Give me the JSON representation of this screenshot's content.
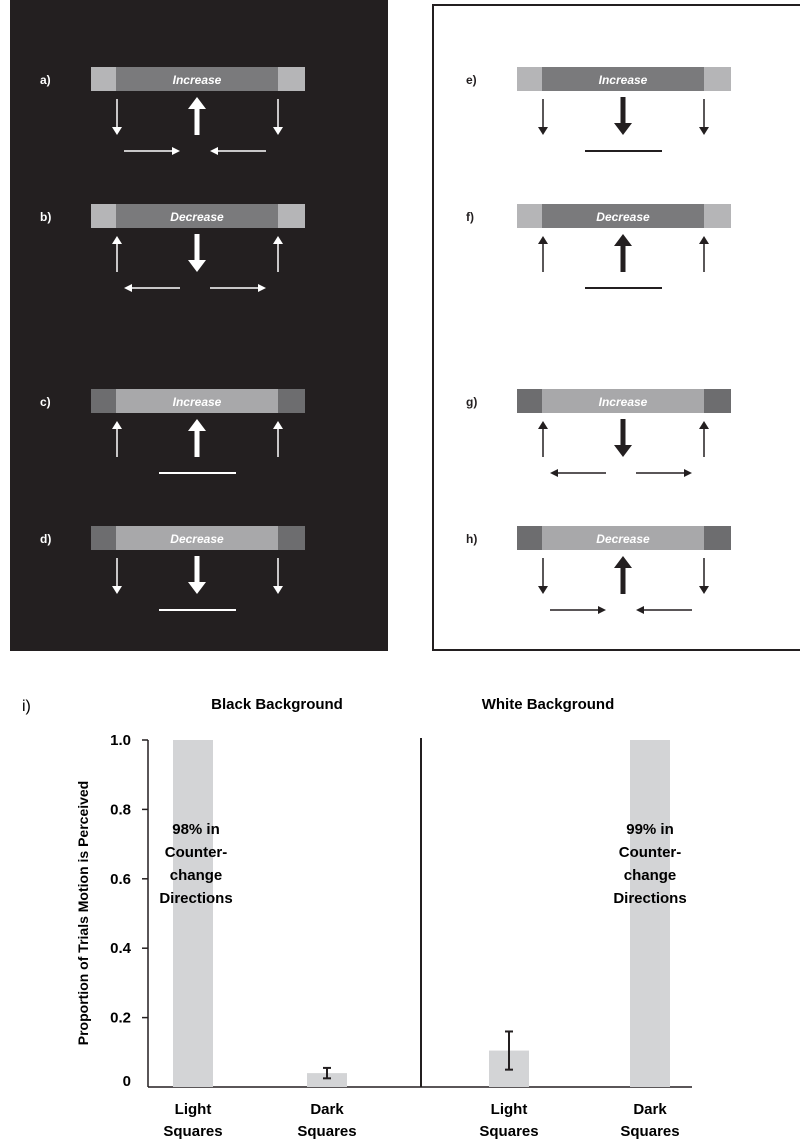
{
  "black_panel": {
    "background": "#231f20",
    "foreground": "#ffffff",
    "rows": [
      {
        "label": "a)",
        "bar_text": "Increase",
        "outer_color": "#b5b5b7",
        "inner_color": "#7a7a7c",
        "side_arrows": "down",
        "center_arrow": "up",
        "bottom": "arrows-inward"
      },
      {
        "label": "b)",
        "bar_text": "Decrease",
        "outer_color": "#b5b5b7",
        "inner_color": "#7a7a7c",
        "side_arrows": "up",
        "center_arrow": "down",
        "bottom": "arrows-outward"
      },
      {
        "label": "c)",
        "bar_text": "Increase",
        "outer_color": "#6d6d6f",
        "inner_color": "#a8a8aa",
        "side_arrows": "up",
        "center_arrow": "up",
        "bottom": "line"
      },
      {
        "label": "d)",
        "bar_text": "Decrease",
        "outer_color": "#6d6d6f",
        "inner_color": "#a8a8aa",
        "side_arrows": "down",
        "center_arrow": "down",
        "bottom": "line"
      }
    ]
  },
  "white_panel": {
    "background": "#ffffff",
    "foreground": "#231f20",
    "rows": [
      {
        "label": "e)",
        "bar_text": "Increase",
        "outer_color": "#b5b5b7",
        "inner_color": "#7a7a7c",
        "side_arrows": "down",
        "center_arrow": "down",
        "bottom": "line"
      },
      {
        "label": "f)",
        "bar_text": "Decrease",
        "outer_color": "#b5b5b7",
        "inner_color": "#7a7a7c",
        "side_arrows": "up",
        "center_arrow": "up",
        "bottom": "line"
      },
      {
        "label": "g)",
        "bar_text": "Increase",
        "outer_color": "#6d6d6f",
        "inner_color": "#a8a8aa",
        "side_arrows": "up",
        "center_arrow": "down",
        "bottom": "arrows-outward"
      },
      {
        "label": "h)",
        "bar_text": "Decrease",
        "outer_color": "#6d6d6f",
        "inner_color": "#a8a8aa",
        "side_arrows": "down",
        "center_arrow": "up",
        "bottom": "arrows-inward"
      }
    ]
  },
  "chart": {
    "panel_label": "i)",
    "left_heading": "Black Background",
    "right_heading": "White Background",
    "y_label": "Proportion of Trials Motion is Perceived",
    "y_ticks": [
      "0",
      "0.2",
      "0.4",
      "0.6",
      "0.8",
      "1.0"
    ],
    "left_note": [
      "98% in",
      "Counter-",
      "change",
      "Directions"
    ],
    "right_note": [
      "99% in",
      "Counter-",
      "change",
      "Directions"
    ],
    "categories": [
      [
        "Light",
        "Squares"
      ],
      [
        "Dark",
        "Squares"
      ],
      [
        "Light",
        "Squares"
      ],
      [
        "Dark",
        "Squares"
      ]
    ],
    "bar_color": "#d3d4d6"
  },
  "chart_data": {
    "type": "bar",
    "groups": [
      "Black Background",
      "White Background"
    ],
    "categories": [
      "Light Squares",
      "Dark Squares",
      "Light Squares",
      "Dark Squares"
    ],
    "values": [
      1.0,
      0.04,
      0.105,
      1.0
    ],
    "error_low": [
      null,
      0.025,
      0.05,
      null
    ],
    "error_high": [
      null,
      0.055,
      0.16,
      null
    ],
    "ylabel": "Proportion of Trials Motion is Perceived",
    "ylim": [
      0,
      1.0
    ],
    "yticks": [
      0,
      0.2,
      0.4,
      0.6,
      0.8,
      1.0
    ]
  }
}
